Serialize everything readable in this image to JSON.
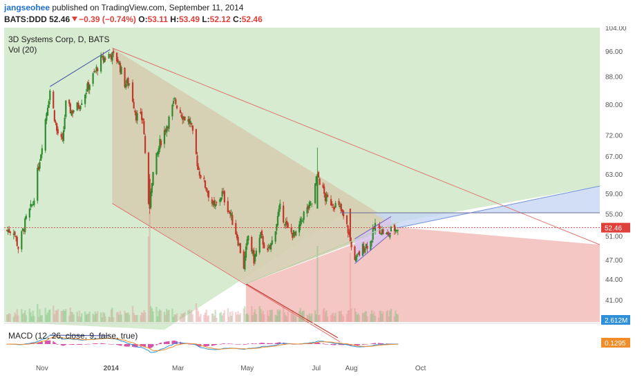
{
  "header": {
    "author": "jangseohee",
    "published": "published on TradingView.com, September 11, 2014",
    "symbol": "BATS:DDD",
    "last": "52.46",
    "change": "−0.39 (−0.74%)",
    "o_label": "O:",
    "o_value": "53.11",
    "h_label": "H:",
    "h_value": "53.49",
    "l_label": "L:",
    "l_value": "52.12",
    "c_label": "C:",
    "c_value": "52.46"
  },
  "legend": {
    "symbol_title": "3D Systems Corp, D, BATS",
    "volume_title": "Vol (20)",
    "macd_title": "MACD (12, 26, close, 9, false, true)"
  },
  "colors": {
    "up": "#2f8a2f",
    "down": "#c0392b",
    "macd_line": "#2f8fd8",
    "signal_line": "#f28c28",
    "histogram": "#cc3399",
    "last_price_tag": "#e0403a",
    "volume_tag": "#2f8fd8",
    "macd_tag": "#f28c28",
    "green_zone": "#d6ebd0",
    "brown_channel": "#d6cdb0",
    "red_zone": "#f4c6c4",
    "blue_channel": "#c6d6f4"
  },
  "chart_data": {
    "type": "candlestick",
    "symbol": "BATS:DDD",
    "timeframe": "D",
    "x_ticks": [
      "Nov",
      "2014",
      "Mar",
      "May",
      "Jul",
      "Aug",
      "Oct"
    ],
    "y_ticks": [
      "104.00",
      "96.00",
      "88.00",
      "80.00",
      "72.00",
      "67.00",
      "63.00",
      "59.00",
      "55.00",
      "51.00",
      "47.00",
      "44.00",
      "41.00"
    ],
    "ylim": [
      38,
      104
    ],
    "y_scale": "log",
    "last_price_label": "52.46",
    "last_price": 52.46,
    "volume_label": "2.612M",
    "macd_label": "0.1295",
    "start_date": "2013-10-01",
    "anchors": [
      [
        "2013-10-01",
        52
      ],
      [
        "2013-10-07",
        52
      ],
      [
        "2013-10-11",
        49
      ],
      [
        "2013-10-18",
        54
      ],
      [
        "2013-10-24",
        57
      ],
      [
        "2013-10-31",
        68
      ],
      [
        "2013-11-08",
        84
      ],
      [
        "2013-11-14",
        73
      ],
      [
        "2013-11-19",
        70
      ],
      [
        "2013-11-22",
        80
      ],
      [
        "2013-11-27",
        78
      ],
      [
        "2013-12-04",
        80
      ],
      [
        "2013-12-13",
        86
      ],
      [
        "2013-12-23",
        93
      ],
      [
        "2013-12-31",
        95
      ],
      [
        "2014-01-07",
        93
      ],
      [
        "2014-01-13",
        86
      ],
      [
        "2014-01-17",
        86
      ],
      [
        "2014-01-23",
        77
      ],
      [
        "2014-01-29",
        76
      ],
      [
        "2014-02-03",
        56
      ],
      [
        "2014-02-06",
        62
      ],
      [
        "2014-02-13",
        70
      ],
      [
        "2014-02-21",
        76
      ],
      [
        "2014-02-26",
        81
      ],
      [
        "2014-03-05",
        77
      ],
      [
        "2014-03-12",
        75
      ],
      [
        "2014-03-19",
        64
      ],
      [
        "2014-03-26",
        60
      ],
      [
        "2014-04-02",
        56
      ],
      [
        "2014-04-09",
        59
      ],
      [
        "2014-04-16",
        55
      ],
      [
        "2014-04-22",
        51
      ],
      [
        "2014-04-28",
        46
      ],
      [
        "2014-05-02",
        51
      ],
      [
        "2014-05-07",
        47
      ],
      [
        "2014-05-13",
        51
      ],
      [
        "2014-05-19",
        48
      ],
      [
        "2014-05-23",
        50
      ],
      [
        "2014-05-30",
        56
      ],
      [
        "2014-06-06",
        52
      ],
      [
        "2014-06-13",
        51
      ],
      [
        "2014-06-20",
        55
      ],
      [
        "2014-06-27",
        57
      ],
      [
        "2014-07-02",
        63
      ],
      [
        "2014-07-09",
        58
      ],
      [
        "2014-07-16",
        57
      ],
      [
        "2014-07-22",
        56
      ],
      [
        "2014-07-29",
        52
      ],
      [
        "2014-08-01",
        49
      ],
      [
        "2014-08-05",
        47
      ],
      [
        "2014-08-11",
        49
      ],
      [
        "2014-08-18",
        50
      ],
      [
        "2014-08-22",
        53
      ],
      [
        "2014-08-27",
        52
      ],
      [
        "2014-09-02",
        51
      ],
      [
        "2014-09-05",
        52
      ],
      [
        "2014-09-11",
        52.46
      ]
    ],
    "events": [
      {
        "date": "2014-02-04",
        "open": 62,
        "high": 63,
        "low": 55,
        "close": 56,
        "volume": 8.0
      },
      {
        "date": "2014-07-02",
        "open": 56,
        "high": 69,
        "low": 56,
        "close": 63,
        "volume": 5.5
      },
      {
        "date": "2014-07-31",
        "open": 56,
        "high": 56,
        "low": 50,
        "close": 50,
        "volume": 5.0
      }
    ]
  }
}
